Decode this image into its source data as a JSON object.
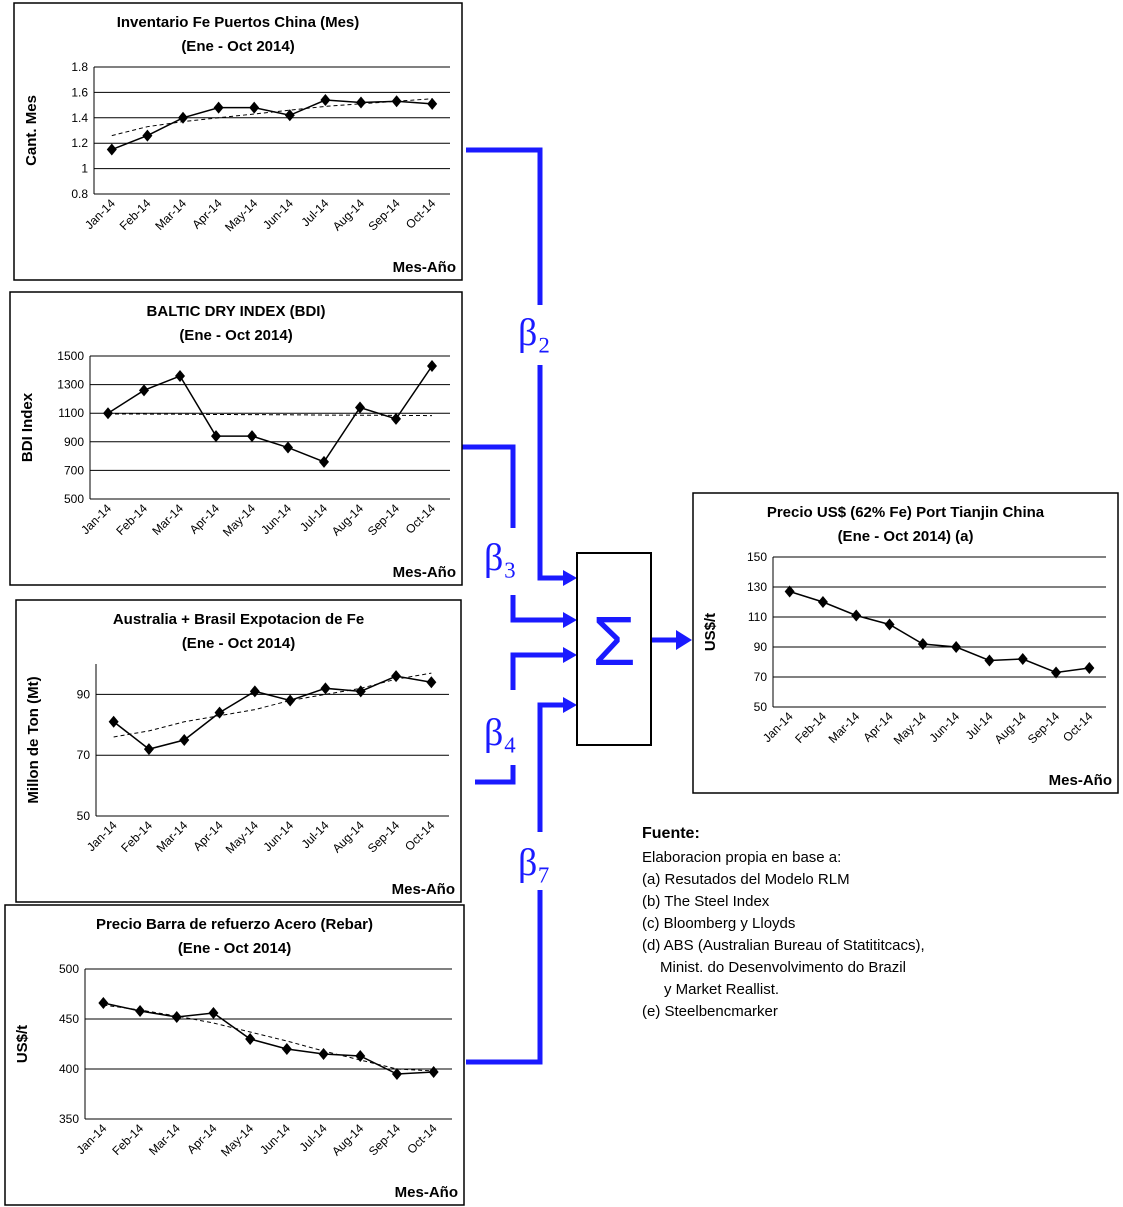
{
  "chart_data": [
    {
      "type": "line",
      "title": "Inventario Fe Puertos China (Mes)",
      "subtitle": "(Ene - Oct  2014)",
      "y_label": "Cant. Mes",
      "x_label": "Mes-Año",
      "categories": [
        "Jan-14",
        "Feb-14",
        "Mar-14",
        "Apr-14",
        "May-14",
        "Jun-14",
        "Jul-14",
        "Aug-14",
        "Sep-14",
        "Oct-14"
      ],
      "series": [
        {
          "color": "#000000",
          "values": [
            1.15,
            1.26,
            1.4,
            1.48,
            1.48,
            1.42,
            1.54,
            1.52,
            1.53,
            1.51
          ]
        },
        {
          "color": "#000000",
          "dashed": true,
          "values": [
            1.26,
            1.33,
            1.37,
            1.4,
            1.43,
            1.46,
            1.49,
            1.51,
            1.53,
            1.55
          ]
        }
      ],
      "ylim": [
        0.8,
        1.8
      ],
      "yticks": [
        0.8,
        1,
        1.2,
        1.4,
        1.6,
        1.8
      ],
      "grid": true
    },
    {
      "type": "line",
      "title": "BALTIC DRY INDEX (BDI)",
      "subtitle": "(Ene - Oct  2014)",
      "y_label": "BDI Index",
      "x_label": "Mes-Año",
      "categories": [
        "Jan-14",
        "Feb-14",
        "Mar-14",
        "Apr-14",
        "May-14",
        "Jun-14",
        "Jul-14",
        "Aug-14",
        "Sep-14",
        "Oct-14"
      ],
      "series": [
        {
          "color": "#000000",
          "values": [
            1100,
            1260,
            1360,
            940,
            940,
            860,
            760,
            1140,
            1060,
            1430
          ]
        },
        {
          "color": "#000000",
          "dashed": true,
          "values": [
            1095,
            1094,
            1093,
            1091,
            1090,
            1089,
            1087,
            1086,
            1085,
            1083
          ]
        }
      ],
      "ylim": [
        500,
        1500
      ],
      "yticks": [
        500,
        700,
        900,
        1100,
        1300,
        1500
      ],
      "grid": true
    },
    {
      "type": "line",
      "title": "Australia + Brasil Expotacion de Fe",
      "subtitle": "(Ene -  Oct  2014)",
      "y_label": "Millon de Ton (Mt)",
      "x_label": "Mes-Año",
      "categories": [
        "Jan-14",
        "Feb-14",
        "Mar-14",
        "Apr-14",
        "May-14",
        "Jun-14",
        "Jul-14",
        "Aug-14",
        "Sep-14",
        "Oct-14"
      ],
      "series": [
        {
          "color": "#000000",
          "values": [
            81,
            72,
            75,
            84,
            91,
            88,
            92,
            91,
            96,
            94
          ]
        },
        {
          "color": "#000000",
          "dashed": true,
          "values": [
            76,
            78,
            81,
            83,
            85,
            88,
            90,
            92,
            95,
            97
          ]
        }
      ],
      "ylim": [
        50,
        100
      ],
      "yticks": [
        50,
        70,
        90
      ],
      "grid": true
    },
    {
      "type": "line",
      "title": "Precio Barra de refuerzo Acero (Rebar)",
      "subtitle": "(Ene -  Oct  2014)",
      "y_label": "US$/t",
      "x_label": "Mes-Año",
      "categories": [
        "Jan-14",
        "Feb-14",
        "Mar-14",
        "Apr-14",
        "May-14",
        "Jun-14",
        "Jul-14",
        "Aug-14",
        "Sep-14",
        "Oct-14"
      ],
      "series": [
        {
          "color": "#000000",
          "values": [
            466,
            458,
            452,
            456,
            430,
            420,
            415,
            413,
            395,
            397
          ]
        },
        {
          "color": "#000000",
          "dashed": true,
          "values": [
            464,
            459,
            453,
            446,
            437,
            428,
            418,
            409,
            400,
            398
          ]
        }
      ],
      "ylim": [
        350,
        500
      ],
      "yticks": [
        350,
        400,
        450,
        500
      ],
      "grid": true
    },
    {
      "type": "line",
      "title": "Precio US$ (62% Fe) Port Tianjin China",
      "subtitle": "(Ene -  Oct  2014) (a)",
      "y_label": "US$/t",
      "x_label": "Mes-Año",
      "categories": [
        "Jan-14",
        "Feb-14",
        "Mar-14",
        "Apr-14",
        "May-14",
        "Jun-14",
        "Jul-14",
        "Aug-14",
        "Sep-14",
        "Oct-14"
      ],
      "series": [
        {
          "color": "#000000",
          "values": [
            127,
            120,
            111,
            105,
            92,
            90,
            81,
            82,
            73,
            76
          ]
        }
      ],
      "ylim": [
        50,
        150
      ],
      "yticks": [
        50,
        70,
        90,
        110,
        130,
        150
      ],
      "grid": true
    }
  ],
  "diagram": {
    "betas": [
      "β₂",
      "β₃",
      "β₄",
      "β₇"
    ],
    "sum": "Σ"
  },
  "source": {
    "title": "Fuente:",
    "lines": [
      "Elaboracion propia en base a:",
      "(a) Resutados del Modelo RLM",
      "(b) The Steel Index",
      "(c)  Bloomberg y Lloyds",
      "(d)  ABS (Australian Bureau of Statititcacs),",
      "Minist. do Desenvolvimento do Brazil",
      "y Market Reallist.",
      "(e) Steelbencmarker"
    ]
  }
}
